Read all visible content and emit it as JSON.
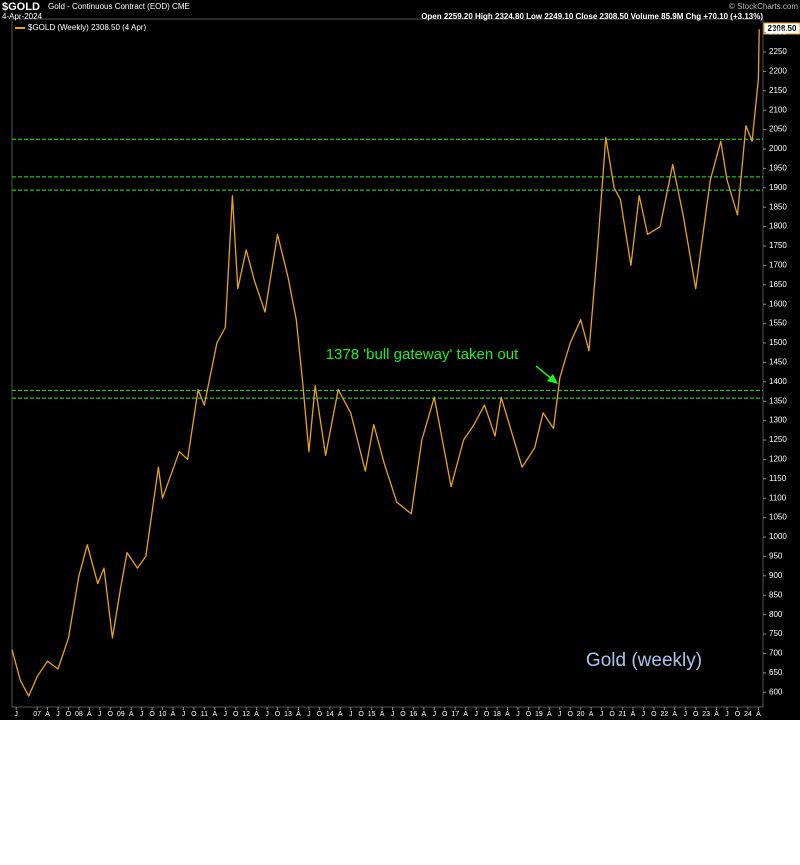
{
  "chart_data": {
    "type": "line",
    "header": {
      "symbol": "$GOLD",
      "description": "Gold - Continuous Contract (EOD) CME",
      "date": "4-Apr-2024",
      "quote": "Open 2259.20  High 2324.80  Low 2249.10  Close 2308.50  Volume 85.9M  Chg +70.10 (+3.13%)",
      "source": "© StockCharts.com"
    },
    "last_value_label": "2308.50",
    "annotations": [
      "1378 'bull gateway' taken out",
      "Gold (weekly)"
    ],
    "x": [
      2006.4,
      2006.6,
      2006.8,
      2007.0,
      2007.25,
      2007.5,
      2007.75,
      2008.0,
      2008.2,
      2008.45,
      2008.6,
      2008.8,
      2009.0,
      2009.15,
      2009.4,
      2009.6,
      2009.9,
      2010.0,
      2010.4,
      2010.6,
      2010.85,
      2011.0,
      2011.3,
      2011.5,
      2011.67,
      2011.8,
      2012.0,
      2012.2,
      2012.45,
      2012.75,
      2013.0,
      2013.2,
      2013.35,
      2013.5,
      2013.65,
      2013.9,
      2014.2,
      2014.5,
      2014.85,
      2015.05,
      2015.3,
      2015.6,
      2015.95,
      2016.2,
      2016.5,
      2016.9,
      2017.2,
      2017.45,
      2017.7,
      2017.95,
      2018.1,
      2018.6,
      2018.9,
      2019.1,
      2019.35,
      2019.5,
      2019.75,
      2020.0,
      2020.2,
      2020.4,
      2020.6,
      2020.8,
      2020.95,
      2021.2,
      2021.4,
      2021.6,
      2021.9,
      2022.2,
      2022.45,
      2022.75,
      2022.95,
      2023.1,
      2023.35,
      2023.5,
      2023.75,
      2023.95,
      2024.1,
      2024.25,
      2024.27
    ],
    "series": [
      {
        "name": "$GOLD (Weekly) 2308.50 (4 Apr)",
        "color": "#e8a317",
        "values": [
          710,
          630,
          590,
          640,
          680,
          660,
          740,
          900,
          980,
          880,
          920,
          740,
          870,
          960,
          920,
          950,
          1180,
          1100,
          1220,
          1200,
          1380,
          1340,
          1500,
          1540,
          1880,
          1640,
          1740,
          1660,
          1580,
          1780,
          1670,
          1560,
          1400,
          1220,
          1390,
          1210,
          1380,
          1320,
          1170,
          1290,
          1190,
          1090,
          1060,
          1250,
          1360,
          1130,
          1250,
          1290,
          1340,
          1260,
          1360,
          1180,
          1230,
          1320,
          1280,
          1410,
          1500,
          1560,
          1480,
          1740,
          2030,
          1900,
          1870,
          1700,
          1880,
          1780,
          1800,
          1960,
          1830,
          1640,
          1800,
          1920,
          2020,
          1920,
          1830,
          2060,
          2020,
          2180,
          2308.5
        ]
      }
    ],
    "reference_lines": [
      2025,
      1928,
      1894,
      1378,
      1358
    ],
    "reference_color": "#22ee22",
    "xlim": [
      2006.4,
      2024.36
    ],
    "ylim": [
      562,
      2335
    ],
    "yticks": [
      600,
      650,
      700,
      750,
      800,
      850,
      900,
      950,
      1000,
      1050,
      1100,
      1150,
      1200,
      1250,
      1300,
      1350,
      1400,
      1450,
      1500,
      1550,
      1600,
      1650,
      1700,
      1750,
      1800,
      1850,
      1900,
      1950,
      2000,
      2050,
      2100,
      2150,
      2200,
      2250,
      2300
    ],
    "xticks": [
      {
        "value": 2006.5,
        "label": "J"
      },
      {
        "value": 2007,
        "label": "07"
      },
      {
        "value": 2007.25,
        "label": "A"
      },
      {
        "value": 2007.5,
        "label": "J"
      },
      {
        "value": 2007.75,
        "label": "O"
      },
      {
        "value": 2008,
        "label": "08"
      },
      {
        "value": 2008.25,
        "label": "A"
      },
      {
        "value": 2008.5,
        "label": "J"
      },
      {
        "value": 2008.75,
        "label": "O"
      },
      {
        "value": 2009,
        "label": "09"
      },
      {
        "value": 2009.25,
        "label": "A"
      },
      {
        "value": 2009.5,
        "label": "J"
      },
      {
        "value": 2009.75,
        "label": "O"
      },
      {
        "value": 2010,
        "label": "10"
      },
      {
        "value": 2010.25,
        "label": "A"
      },
      {
        "value": 2010.5,
        "label": "J"
      },
      {
        "value": 2010.75,
        "label": "O"
      },
      {
        "value": 2011,
        "label": "11"
      },
      {
        "value": 2011.25,
        "label": "A"
      },
      {
        "value": 2011.5,
        "label": "J"
      },
      {
        "value": 2011.75,
        "label": "O"
      },
      {
        "value": 2012,
        "label": "12"
      },
      {
        "value": 2012.25,
        "label": "A"
      },
      {
        "value": 2012.5,
        "label": "J"
      },
      {
        "value": 2012.75,
        "label": "O"
      },
      {
        "value": 2013,
        "label": "13"
      },
      {
        "value": 2013.25,
        "label": "A"
      },
      {
        "value": 2013.5,
        "label": "J"
      },
      {
        "value": 2013.75,
        "label": "O"
      },
      {
        "value": 2014,
        "label": "14"
      },
      {
        "value": 2014.25,
        "label": "A"
      },
      {
        "value": 2014.5,
        "label": "J"
      },
      {
        "value": 2014.75,
        "label": "O"
      },
      {
        "value": 2015,
        "label": "15"
      },
      {
        "value": 2015.25,
        "label": "A"
      },
      {
        "value": 2015.5,
        "label": "J"
      },
      {
        "value": 2015.75,
        "label": "O"
      },
      {
        "value": 2016,
        "label": "16"
      },
      {
        "value": 2016.25,
        "label": "A"
      },
      {
        "value": 2016.5,
        "label": "J"
      },
      {
        "value": 2016.75,
        "label": "O"
      },
      {
        "value": 2017,
        "label": "17"
      },
      {
        "value": 2017.25,
        "label": "A"
      },
      {
        "value": 2017.5,
        "label": "J"
      },
      {
        "value": 2017.75,
        "label": "O"
      },
      {
        "value": 2018,
        "label": "18"
      },
      {
        "value": 2018.25,
        "label": "A"
      },
      {
        "value": 2018.5,
        "label": "J"
      },
      {
        "value": 2018.75,
        "label": "O"
      },
      {
        "value": 2019,
        "label": "19"
      },
      {
        "value": 2019.25,
        "label": "A"
      },
      {
        "value": 2019.5,
        "label": "J"
      },
      {
        "value": 2019.75,
        "label": "O"
      },
      {
        "value": 2020,
        "label": "20"
      },
      {
        "value": 2020.25,
        "label": "A"
      },
      {
        "value": 2020.5,
        "label": "J"
      },
      {
        "value": 2020.75,
        "label": "O"
      },
      {
        "value": 2021,
        "label": "21"
      },
      {
        "value": 2021.25,
        "label": "A"
      },
      {
        "value": 2021.5,
        "label": "J"
      },
      {
        "value": 2021.75,
        "label": "O"
      },
      {
        "value": 2022,
        "label": "22"
      },
      {
        "value": 2022.25,
        "label": "A"
      },
      {
        "value": 2022.5,
        "label": "J"
      },
      {
        "value": 2022.75,
        "label": "O"
      },
      {
        "value": 2023,
        "label": "23"
      },
      {
        "value": 2023.25,
        "label": "A"
      },
      {
        "value": 2023.5,
        "label": "J"
      },
      {
        "value": 2023.75,
        "label": "O"
      },
      {
        "value": 2024,
        "label": "24"
      },
      {
        "value": 2024.25,
        "label": "A"
      }
    ]
  }
}
